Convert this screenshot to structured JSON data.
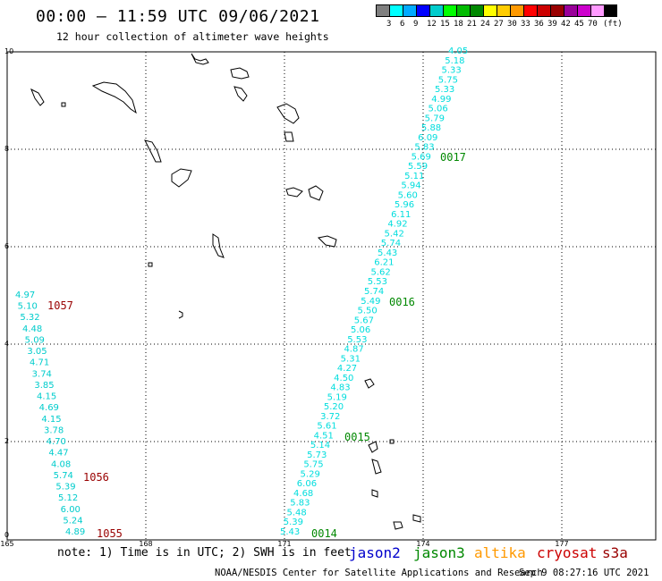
{
  "header": {
    "title": "00:00 – 11:59 UTC 09/06/2021",
    "subtitle": "12 hour collection of altimeter wave heights"
  },
  "scale": {
    "colors": [
      "#7f7f7f",
      "#00ffff",
      "#00aaff",
      "#0000ff",
      "#00cccc",
      "#00ff00",
      "#00bb00",
      "#008800",
      "#ffff00",
      "#ffcc00",
      "#ff9900",
      "#ff0000",
      "#cc0000",
      "#990000",
      "#990099",
      "#cc00cc",
      "#ff99ff",
      "#000000"
    ],
    "labels": [
      "3",
      "6",
      "9",
      "12",
      "15",
      "18",
      "21",
      "24",
      "27",
      "30",
      "33",
      "36",
      "39",
      "42",
      "45",
      "70",
      "(ft)"
    ]
  },
  "axes": {
    "lat_labels": [
      "10",
      "8",
      "6",
      "4",
      "2",
      "0"
    ],
    "lon_labels": [
      "165",
      "168",
      "171",
      "174",
      "177"
    ]
  },
  "tracks": {
    "left_values": [
      "4.97",
      "5.10",
      "5.32",
      "4.48",
      "5.09",
      "3.05",
      "4.71",
      "3.74",
      "3.85",
      "4.15",
      "4.69",
      "4.15",
      "3.78",
      "4.70",
      "4.47",
      "4.08",
      "5.74",
      "5.39",
      "5.12",
      "6.00",
      "5.24",
      "4.89"
    ],
    "right_values": [
      "4.05",
      "5.18",
      "5.33",
      "5.75",
      "5.33",
      "4.99",
      "5.06",
      "5.79",
      "5.88",
      "6.09",
      "5.83",
      "5.69",
      "5.59",
      "5.11",
      "5.94",
      "5.60",
      "5.96",
      "6.11",
      "4.92",
      "5.42",
      "5.74",
      "5.43",
      "6.21",
      "5.62",
      "5.53",
      "5.74",
      "5.49",
      "5.50",
      "5.67",
      "5.06",
      "5.53",
      "4.87",
      "5.31",
      "4.27",
      "4.50",
      "4.83",
      "5.19",
      "5.20",
      "3.72",
      "5.61",
      "4.51",
      "5.14",
      "5.73",
      "5.75",
      "5.29",
      "6.06",
      "4.68",
      "5.83",
      "5.48",
      "5.39",
      "5.43"
    ],
    "cryosat_ids": [
      "1057",
      "1056",
      "1055"
    ],
    "jason3_ids": [
      "0017",
      "0016",
      "0015",
      "0014"
    ]
  },
  "footer": {
    "note": "note: 1) Time is in UTC; 2) SWH is in feet",
    "missions": [
      {
        "name": "jason2",
        "color": "#0000cc"
      },
      {
        "name": "jason3",
        "color": "#008800"
      },
      {
        "name": "altika",
        "color": "#ff9900"
      },
      {
        "name": "cryosat",
        "color": "#cc0000"
      },
      {
        "name": "s3a",
        "color": "#990000"
      }
    ],
    "credit": "NOAA/NESDIS Center for Satellite Applications and Research",
    "timestamp": "Sep  9 08:27:16 UTC 2021"
  },
  "colors": {
    "left_track": "#00cccc",
    "right_track": "#00dddd",
    "cryosat_label": "#990000",
    "jason3_label": "#008800"
  }
}
